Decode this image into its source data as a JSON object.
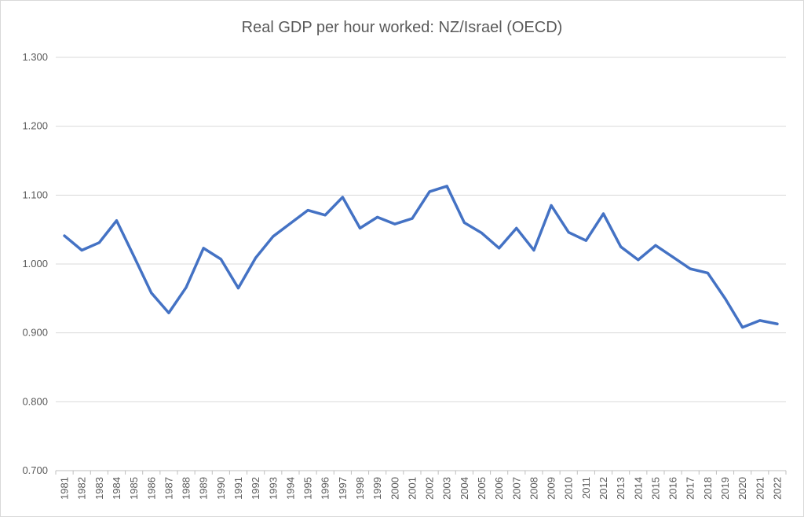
{
  "chart_data": {
    "type": "line",
    "title": "Real GDP per hour worked: NZ/Israel (OECD)",
    "xlabel": "",
    "ylabel": "",
    "ylim": [
      0.7,
      1.3
    ],
    "y_ticks": [
      "0.700",
      "0.800",
      "0.900",
      "1.000",
      "1.100",
      "1.200",
      "1.300"
    ],
    "grid": true,
    "legend": "none",
    "line_color": "#4472C4",
    "categories": [
      "1981",
      "1982",
      "1983",
      "1984",
      "1985",
      "1986",
      "1987",
      "1988",
      "1989",
      "1990",
      "1991",
      "1992",
      "1993",
      "1994",
      "1995",
      "1996",
      "1997",
      "1998",
      "1999",
      "2000",
      "2001",
      "2002",
      "2003",
      "2004",
      "2005",
      "2006",
      "2007",
      "2008",
      "2009",
      "2010",
      "2011",
      "2012",
      "2013",
      "2014",
      "2015",
      "2016",
      "2017",
      "2018",
      "2019",
      "2020",
      "2021",
      "2022"
    ],
    "series": [
      {
        "values": [
          1.041,
          1.02,
          1.031,
          1.063,
          1.011,
          0.958,
          0.929,
          0.966,
          1.023,
          1.007,
          0.965,
          1.009,
          1.04,
          1.059,
          1.078,
          1.071,
          1.097,
          1.052,
          1.068,
          1.058,
          1.066,
          1.105,
          1.113,
          1.06,
          1.045,
          1.023,
          1.052,
          1.02,
          1.085,
          1.046,
          1.034,
          1.073,
          1.025,
          1.006,
          1.027,
          1.01,
          0.993,
          0.987,
          0.95,
          0.908,
          0.918,
          0.913
        ]
      }
    ]
  }
}
